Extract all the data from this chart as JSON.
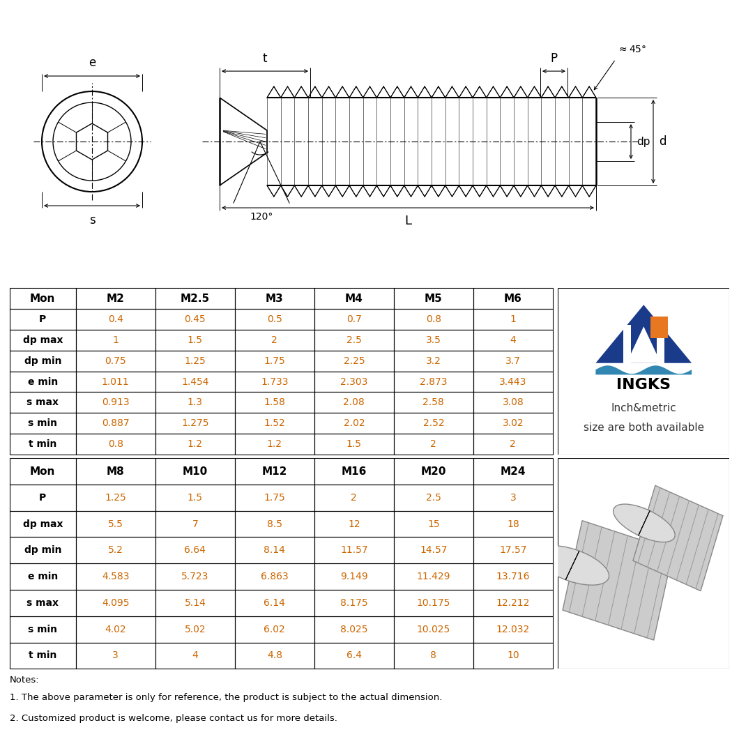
{
  "table1_headers": [
    "Mon",
    "M2",
    "M2.5",
    "M3",
    "M4",
    "M5",
    "M6"
  ],
  "table1_rows": [
    [
      "P",
      "0.4",
      "0.45",
      "0.5",
      "0.7",
      "0.8",
      "1"
    ],
    [
      "dp max",
      "1",
      "1.5",
      "2",
      "2.5",
      "3.5",
      "4"
    ],
    [
      "dp min",
      "0.75",
      "1.25",
      "1.75",
      "2.25",
      "3.2",
      "3.7"
    ],
    [
      "e min",
      "1.011",
      "1.454",
      "1.733",
      "2.303",
      "2.873",
      "3.443"
    ],
    [
      "s max",
      "0.913",
      "1.3",
      "1.58",
      "2.08",
      "2.58",
      "3.08"
    ],
    [
      "s min",
      "0.887",
      "1.275",
      "1.52",
      "2.02",
      "2.52",
      "3.02"
    ],
    [
      "t min",
      "0.8",
      "1.2",
      "1.2",
      "1.5",
      "2",
      "2"
    ]
  ],
  "table2_headers": [
    "Mon",
    "M8",
    "M10",
    "M12",
    "M16",
    "M20",
    "M24"
  ],
  "table2_rows": [
    [
      "P",
      "1.25",
      "1.5",
      "1.75",
      "2",
      "2.5",
      "3"
    ],
    [
      "dp max",
      "5.5",
      "7",
      "8.5",
      "12",
      "15",
      "18"
    ],
    [
      "dp min",
      "5.2",
      "6.64",
      "8.14",
      "11.57",
      "14.57",
      "17.57"
    ],
    [
      "e min",
      "4.583",
      "5.723",
      "6.863",
      "9.149",
      "11.429",
      "13.716"
    ],
    [
      "s max",
      "4.095",
      "5.14",
      "6.14",
      "8.175",
      "10.175",
      "12.212"
    ],
    [
      "s min",
      "4.02",
      "5.02",
      "6.02",
      "8.025",
      "10.025",
      "12.032"
    ],
    [
      "t min",
      "3",
      "4",
      "4.8",
      "6.4",
      "8",
      "10"
    ]
  ],
  "notes_title": "Notes:",
  "notes_lines": [
    "1. The above parameter is only for reference, the product is subject to the actual dimension.",
    "2. Customized product is welcome, please contact us for more details."
  ],
  "header_color": "#000000",
  "data_color": "#CC6600",
  "border_color": "#000000",
  "ingks_text": "INGKS",
  "ingks_sub1": "Inch&metric",
  "ingks_sub2": "size are both available",
  "blue_color": "#1A3A8A",
  "orange_color": "#E87722",
  "teal_color": "#1A7AAA"
}
